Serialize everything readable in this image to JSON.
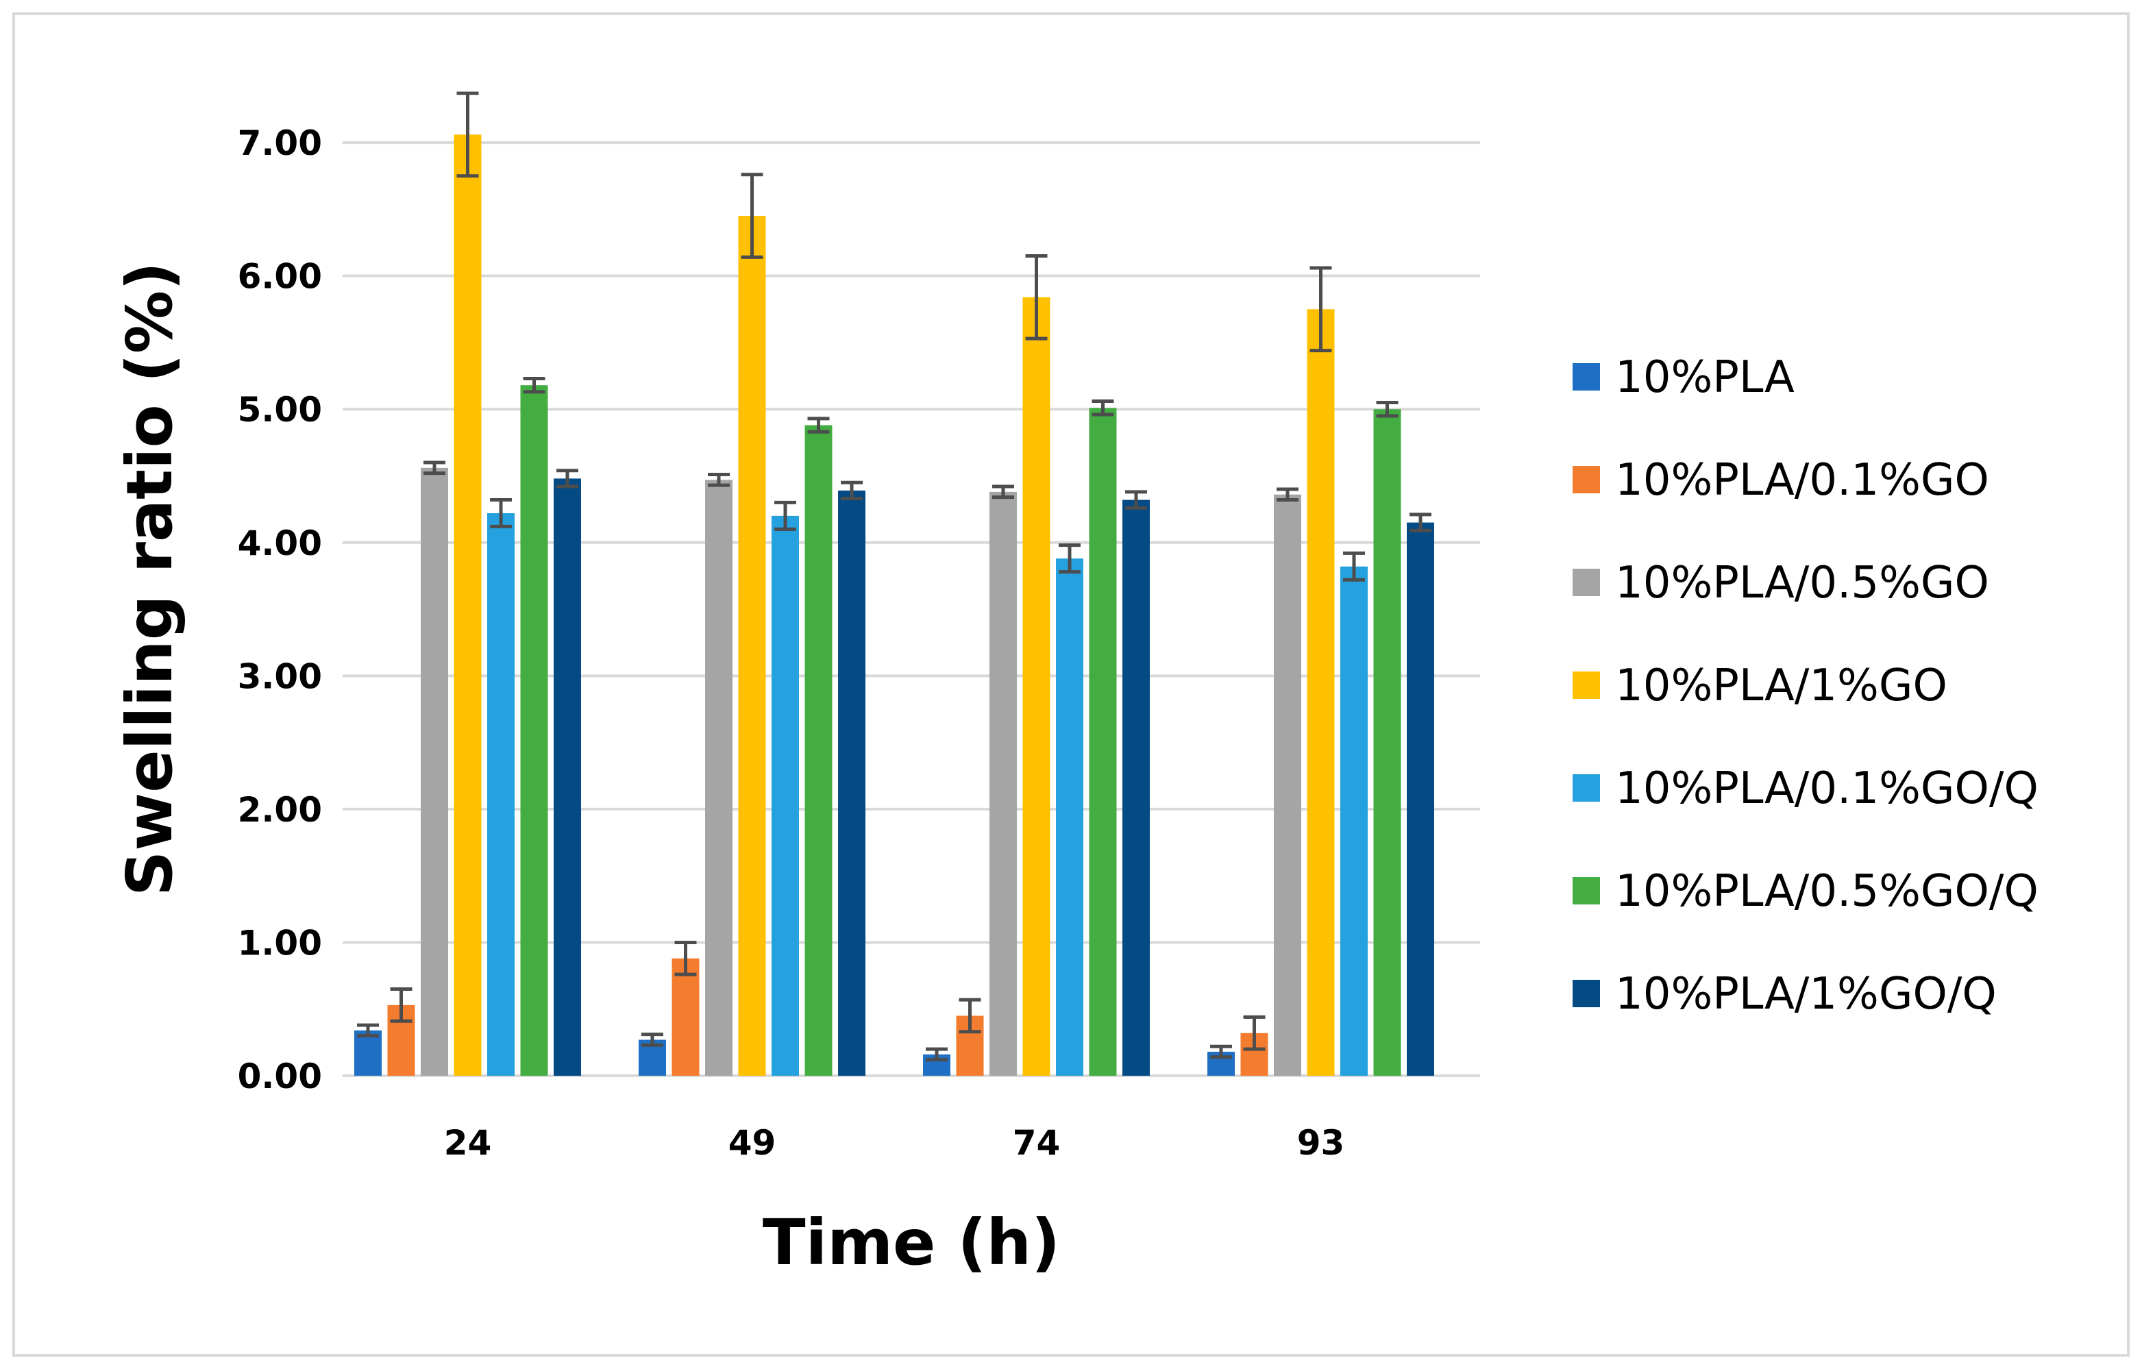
{
  "chart_data": {
    "type": "bar",
    "title": "",
    "xlabel": "Time (h)",
    "ylabel": "Swelling ratio (%)",
    "ylim": [
      0,
      7
    ],
    "yticks": [
      "0.00",
      "1.00",
      "2.00",
      "3.00",
      "4.00",
      "5.00",
      "6.00",
      "7.00"
    ],
    "grid": true,
    "legend_position": "right",
    "categories": [
      "24",
      "49",
      "74",
      "93"
    ],
    "series": [
      {
        "name": "10%PLA",
        "color": "#1f6fc5",
        "values": [
          0.34,
          0.27,
          0.16,
          0.18
        ],
        "errors": [
          0.04,
          0.04,
          0.04,
          0.04
        ]
      },
      {
        "name": "10%PLA/0.1%GO",
        "color": "#f47c2f",
        "values": [
          0.53,
          0.88,
          0.45,
          0.32
        ],
        "errors": [
          0.12,
          0.12,
          0.12,
          0.12
        ]
      },
      {
        "name": "10%PLA/0.5%GO",
        "color": "#a5a5a5",
        "values": [
          4.56,
          4.47,
          4.38,
          4.36
        ],
        "errors": [
          0.04,
          0.04,
          0.04,
          0.04
        ]
      },
      {
        "name": "10%PLA/1%GO",
        "color": "#ffc000",
        "values": [
          7.06,
          6.45,
          5.84,
          5.75
        ],
        "errors": [
          0.31,
          0.31,
          0.31,
          0.31
        ]
      },
      {
        "name": "10%PLA/0.1%GO/Q",
        "color": "#24a1de",
        "values": [
          4.22,
          4.2,
          3.88,
          3.82
        ],
        "errors": [
          0.1,
          0.1,
          0.1,
          0.1
        ]
      },
      {
        "name": "10%PLA/0.5%GO/Q",
        "color": "#43ad42",
        "values": [
          5.18,
          4.88,
          5.01,
          5.0
        ],
        "errors": [
          0.05,
          0.05,
          0.05,
          0.05
        ]
      },
      {
        "name": "10%PLA/1%GO/Q",
        "color": "#044a85",
        "values": [
          4.48,
          4.39,
          4.32,
          4.15
        ],
        "errors": [
          0.06,
          0.06,
          0.06,
          0.06
        ]
      }
    ]
  }
}
